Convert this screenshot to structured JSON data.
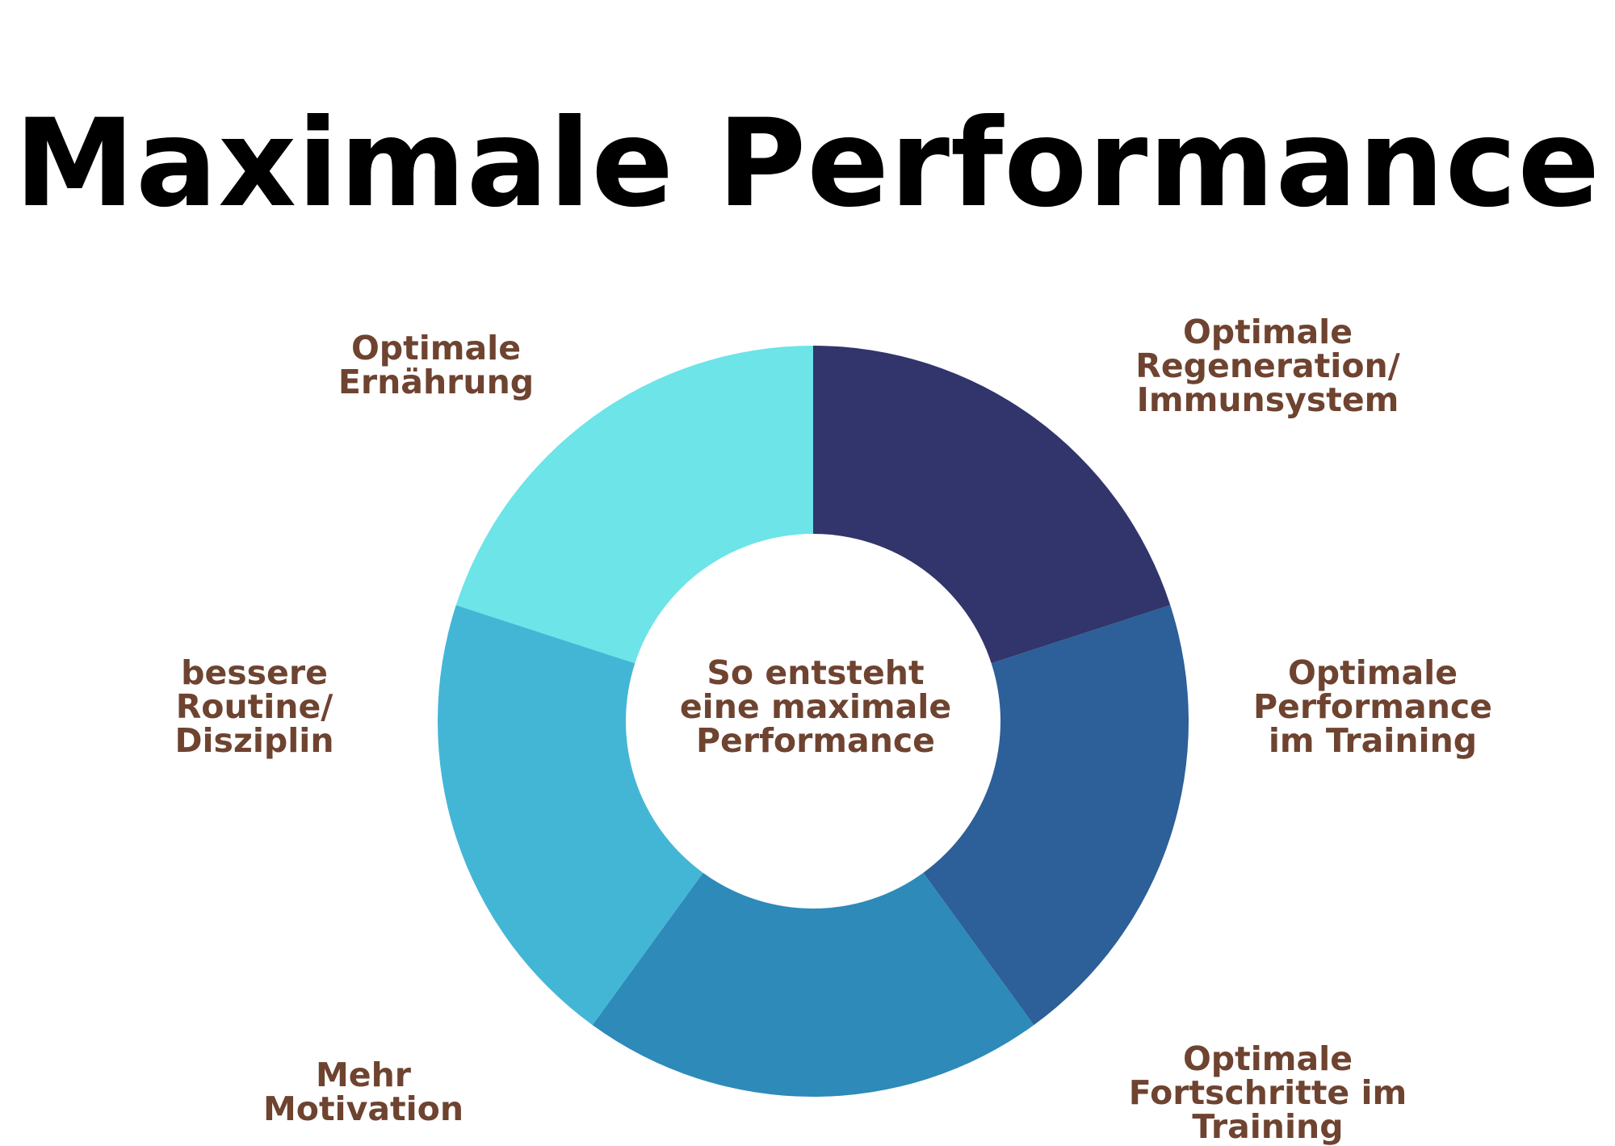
{
  "title": "Maximale Performance",
  "center": {
    "lines": [
      "So entsteht",
      "eine maximale",
      "Performance"
    ]
  },
  "segments": [
    {
      "name": "regeneration",
      "lines": [
        "Optimale",
        "Regeneration/",
        "Immunsystem"
      ],
      "color": "#31356b",
      "share": 0.2
    },
    {
      "name": "performance-training",
      "lines": [
        "Optimale",
        "Performance",
        "im Training"
      ],
      "color": "#2d5f98",
      "share": 0.2
    },
    {
      "name": "fortschritte",
      "lines": [
        "Optimale",
        "Fortschritte im",
        "Training"
      ],
      "color": "#2d8ab9",
      "share": 0.2
    },
    {
      "name": "motivation",
      "lines": [
        "Mehr",
        "Motivation"
      ],
      "color": "#43b6d6",
      "share": 0.2
    },
    {
      "name": "routine",
      "lines": [
        "bessere",
        "Routine/",
        "Disziplin"
      ],
      "color": "#6ce4e8",
      "share": 0.2
    },
    {
      "name": "ernaehrung",
      "lines": [
        "Optimale",
        "Ernährung"
      ],
      "color": "#6ce4e8",
      "share": 0.0
    }
  ]
}
